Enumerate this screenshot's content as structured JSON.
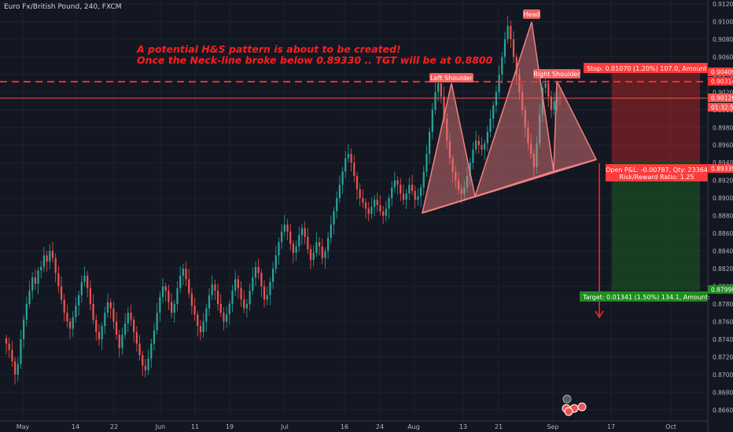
{
  "header": {
    "symbol_title": "Euro Fx/British Pound, 240, FXCM"
  },
  "annotation": {
    "line1": "A potential H&S pattern is about to be created!",
    "line2": "Once the Neck-line broke below 0.89330 .. TGT will be at 0.8800",
    "color": "#ff1e1e"
  },
  "pattern_labels": {
    "left_shoulder": "Left Shoulder",
    "head": "Head",
    "right_shoulder": "Right Shoulder"
  },
  "position": {
    "stop_label": "Stop: 0.01070 (1.20%) 107.0, Amount: ",
    "open_label": "Open P&L: -0.00787, Qty: 23364",
    "rr_label": "Risk/Reward Ratio: 1.25",
    "target_label": "Target: 0.01341 (1.50%) 134.1, Amount: "
  },
  "price_badges": {
    "stop": "0.90409",
    "resistance": "0.90314",
    "last": "0.90126",
    "countdown": "01:32:51",
    "entry": "0.89339",
    "target": "0.87998"
  },
  "colors": {
    "background": "#131722",
    "up_candle": "#26a69a",
    "down_candle": "#ef5350",
    "pattern_fill": "#f08080",
    "stop_zone": "#c62828",
    "target_zone": "#1b5e20",
    "badge_red": "#ff3b3b",
    "badge_green": "#1e8c1e"
  },
  "chart_data": {
    "type": "candlestick",
    "title": "Euro Fx/British Pound, 240, FXCM",
    "ylim": [
      0.865,
      0.912
    ],
    "yticks": [
      "0.91200",
      "0.91000",
      "0.90800",
      "0.90600",
      "0.90400",
      "0.90200",
      "0.90000",
      "0.89800",
      "0.89600",
      "0.89400",
      "0.89200",
      "0.89000",
      "0.88800",
      "0.88600",
      "0.88400",
      "0.88200",
      "0.88000",
      "0.87800",
      "0.87600",
      "0.87400",
      "0.87200",
      "0.87000",
      "0.86800",
      "0.86600"
    ],
    "xticks": [
      "May",
      "14",
      "22",
      "Jun",
      "11",
      "19",
      "Jul",
      "16",
      "24",
      "Aug",
      "13",
      "21",
      "Sep",
      "17",
      "Oct"
    ],
    "close": [
      0.8735,
      0.8728,
      0.8715,
      0.87,
      0.8712,
      0.874,
      0.8762,
      0.878,
      0.8795,
      0.881,
      0.8803,
      0.8818,
      0.8822,
      0.8835,
      0.8828,
      0.884,
      0.8832,
      0.8815,
      0.88,
      0.8785,
      0.877,
      0.876,
      0.8752,
      0.8765,
      0.8778,
      0.879,
      0.8805,
      0.8812,
      0.8798,
      0.878,
      0.8762,
      0.8748,
      0.874,
      0.8755,
      0.877,
      0.8782,
      0.8775,
      0.876,
      0.8745,
      0.873,
      0.8745,
      0.8758,
      0.877,
      0.8762,
      0.8748,
      0.8735,
      0.8722,
      0.871,
      0.8705,
      0.8718,
      0.8735,
      0.875,
      0.877,
      0.8788,
      0.88,
      0.8795,
      0.8782,
      0.877,
      0.878,
      0.8798,
      0.8812,
      0.882,
      0.8808,
      0.8792,
      0.8778,
      0.8768,
      0.8755,
      0.8748,
      0.876,
      0.8775,
      0.879,
      0.8802,
      0.8795,
      0.878,
      0.877,
      0.876,
      0.8768,
      0.878,
      0.8795,
      0.8808,
      0.8798,
      0.8785,
      0.8775,
      0.878,
      0.8795,
      0.881,
      0.8822,
      0.8815,
      0.88,
      0.8785,
      0.879,
      0.8805,
      0.882,
      0.8835,
      0.885,
      0.8862,
      0.887,
      0.8862,
      0.8848,
      0.8838,
      0.8845,
      0.8858,
      0.8866,
      0.8856,
      0.8842,
      0.883,
      0.8838,
      0.885,
      0.8845,
      0.8832,
      0.884,
      0.8855,
      0.887,
      0.8885,
      0.89,
      0.8915,
      0.893,
      0.8945,
      0.895,
      0.894,
      0.8925,
      0.891,
      0.89,
      0.8895,
      0.8888,
      0.8882,
      0.889,
      0.8898,
      0.8892,
      0.8885,
      0.888,
      0.8888,
      0.89,
      0.8912,
      0.892,
      0.8915,
      0.8905,
      0.8898,
      0.8905,
      0.8915,
      0.8908,
      0.8898,
      0.8902,
      0.8912,
      0.893,
      0.895,
      0.8975,
      0.9,
      0.902,
      0.903,
      0.9015,
      0.899,
      0.8965,
      0.8945,
      0.893,
      0.892,
      0.891,
      0.8905,
      0.8912,
      0.8925,
      0.894,
      0.8955,
      0.8965,
      0.896,
      0.8955,
      0.8962,
      0.8975,
      0.899,
      0.9005,
      0.902,
      0.904,
      0.906,
      0.908,
      0.9095,
      0.908,
      0.906,
      0.904,
      0.902,
      0.9,
      0.898,
      0.8962,
      0.895,
      0.8935,
      0.8962,
      0.8995,
      0.9025,
      0.903,
      0.9015,
      0.9,
      0.901,
      0.9014,
      0.9013
    ]
  }
}
